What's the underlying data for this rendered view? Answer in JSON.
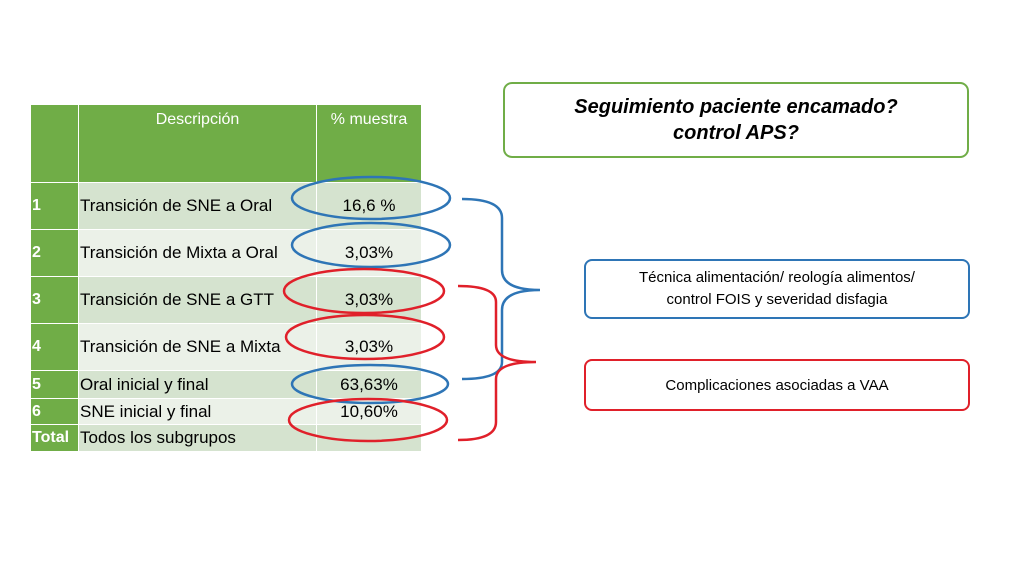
{
  "table": {
    "headers": [
      "",
      "Descripción",
      "% muestra"
    ],
    "rows": [
      {
        "num": "1",
        "desc": "Transición de SNE a Oral",
        "value": "16,6 %"
      },
      {
        "num": "2",
        "desc": "Transición de Mixta a Oral",
        "value": "3,03%"
      },
      {
        "num": "3",
        "desc": "Transición de SNE a GTT",
        "value": "3,03%"
      },
      {
        "num": "4",
        "desc": "Transición de SNE a Mixta",
        "value": "3,03%"
      },
      {
        "num": "5",
        "desc": "Oral inicial y final",
        "value": "63,63%"
      },
      {
        "num": "6",
        "desc": "SNE inicial y final",
        "value": "10,60%"
      },
      {
        "num": "Total",
        "desc": "Todos los subgrupos",
        "value": ""
      }
    ]
  },
  "question_box": {
    "line1": "Seguimiento paciente encamado?",
    "line2": "control APS?"
  },
  "blue_box": {
    "line1": "Técnica alimentación/ reología alimentos/",
    "line2": "control FOIS y severidad disfagia"
  },
  "red_box": {
    "text": "Complicaciones asociadas a VAA"
  },
  "colors": {
    "header_green": "#70ad47",
    "row_light": "#ebf1e8",
    "row_dark": "#d5e3cf",
    "blue": "#2e75b6",
    "red": "#e0202a",
    "green_border": "#70ad47"
  }
}
